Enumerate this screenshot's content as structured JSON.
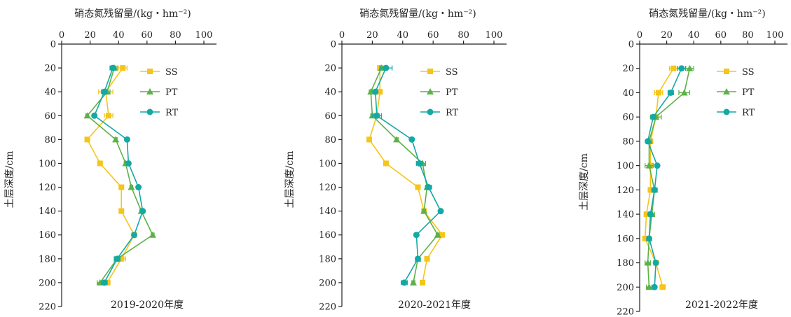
{
  "colors": {
    "SS": "#F5C518",
    "PT": "#5CB247",
    "RT": "#13A9A4",
    "axis": "#222222"
  },
  "markers": {
    "SS": "square",
    "PT": "triangle",
    "RT": "circle"
  },
  "chart_data": [
    {
      "type": "line",
      "title": "",
      "xlabel": "硝态氮残留量/(kg・hm⁻²)",
      "ylabel": "土层深度/cm",
      "panel_label": "2019-2020年度",
      "xlim": [
        0,
        100
      ],
      "ylim": [
        0,
        220
      ],
      "x_ticks": [
        0,
        20,
        40,
        60,
        80,
        100
      ],
      "y_ticks": [
        0,
        20,
        40,
        60,
        80,
        100,
        120,
        140,
        160,
        180,
        200,
        220
      ],
      "depth": [
        20,
        40,
        60,
        80,
        100,
        120,
        140,
        160,
        180,
        200
      ],
      "legend_position": "right",
      "series": [
        {
          "name": "SS",
          "values": [
            43,
            31,
            33,
            18,
            27,
            42,
            42,
            51,
            42,
            32
          ],
          "errors": [
            3,
            5,
            3,
            1,
            1,
            1,
            1,
            1,
            3,
            2
          ]
        },
        {
          "name": "PT",
          "values": [
            37,
            32,
            18,
            38,
            45,
            49,
            56,
            64,
            39,
            27
          ],
          "errors": [
            2,
            2,
            1,
            1,
            1,
            1,
            1,
            1,
            2,
            2
          ]
        },
        {
          "name": "RT",
          "values": [
            36,
            30,
            23,
            46,
            47,
            54,
            57,
            51,
            39,
            30
          ],
          "errors": [
            2,
            2,
            1,
            1,
            1,
            1,
            1,
            1,
            2,
            2
          ]
        }
      ]
    },
    {
      "type": "line",
      "title": "",
      "xlabel": "硝态氮残留量/(kg・hm⁻²)",
      "ylabel": "土层深度/cm",
      "panel_label": "2020-2021年度",
      "xlim": [
        0,
        100
      ],
      "ylim": [
        0,
        220
      ],
      "x_ticks": [
        0,
        20,
        40,
        60,
        80,
        100
      ],
      "y_ticks": [
        0,
        20,
        40,
        60,
        80,
        100,
        120,
        140,
        160,
        180,
        200,
        220
      ],
      "depth": [
        20,
        40,
        60,
        80,
        100,
        120,
        140,
        160,
        180,
        200
      ],
      "legend_position": "right",
      "series": [
        {
          "name": "SS",
          "values": [
            25,
            25,
            23,
            18,
            29,
            50,
            54,
            66,
            56,
            53
          ],
          "errors": [
            1,
            1,
            1,
            1,
            1,
            1,
            1,
            1,
            1,
            1
          ]
        },
        {
          "name": "PT",
          "values": [
            26,
            19,
            20,
            36,
            53,
            56,
            54,
            63,
            50,
            47
          ],
          "errors": [
            1,
            1,
            1,
            1,
            2,
            1,
            1,
            1,
            1,
            1
          ]
        },
        {
          "name": "RT",
          "values": [
            29,
            22,
            23,
            46,
            51,
            57,
            65,
            49,
            50,
            41
          ],
          "errors": [
            4,
            1,
            3,
            1,
            2,
            2,
            1,
            1,
            1,
            2
          ]
        }
      ]
    },
    {
      "type": "line",
      "title": "",
      "xlabel": "硝态氮残留量/(kg・hm⁻²)",
      "ylabel": "土层深度/cm",
      "panel_label": "2021-2022年度",
      "xlim": [
        0,
        100
      ],
      "ylim": [
        0,
        220
      ],
      "x_ticks": [
        0,
        20,
        40,
        60,
        80,
        100
      ],
      "y_ticks": [
        0,
        20,
        40,
        60,
        80,
        100,
        120,
        140,
        160,
        180,
        200,
        220
      ],
      "depth": [
        20,
        40,
        60,
        80,
        100,
        120,
        140,
        160,
        180,
        200
      ],
      "legend_position": "right",
      "series": [
        {
          "name": "SS",
          "values": [
            25,
            14,
            12,
            8,
            8,
            8,
            5,
            4,
            12,
            17
          ],
          "errors": [
            3,
            3,
            1,
            1,
            1,
            1,
            1,
            1,
            1,
            2
          ]
        },
        {
          "name": "PT",
          "values": [
            37,
            33,
            12,
            7,
            7,
            11,
            9,
            7,
            6,
            7
          ],
          "errors": [
            3,
            4,
            4,
            2,
            3,
            2,
            2,
            1,
            2,
            2
          ]
        },
        {
          "name": "RT",
          "values": [
            31,
            23,
            10,
            6,
            13,
            11,
            8,
            7,
            12,
            11
          ],
          "errors": [
            3,
            2,
            1,
            1,
            1,
            1,
            1,
            1,
            1,
            1
          ]
        }
      ]
    }
  ]
}
